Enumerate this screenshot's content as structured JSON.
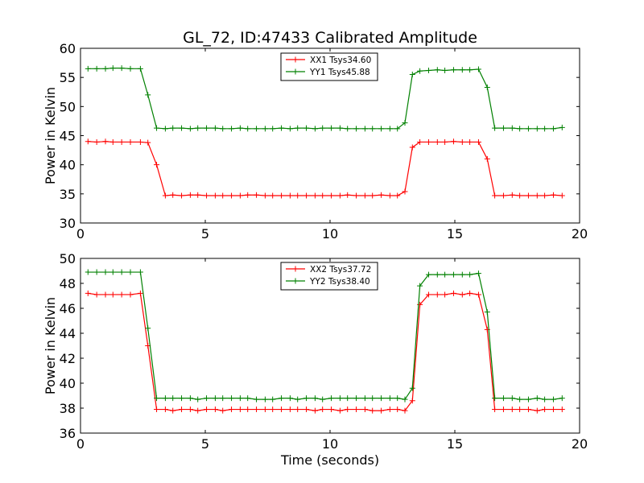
{
  "title": "GL_72, ID:47433 Calibrated Amplitude",
  "chart_data": [
    {
      "type": "line",
      "ylabel": "Power in Kelvin",
      "xlabel": "",
      "xlim": [
        0,
        20
      ],
      "ylim": [
        30,
        60
      ],
      "xticks": [
        "0",
        "5",
        "10",
        "15",
        "20"
      ],
      "yticks": [
        "30",
        "35",
        "40",
        "45",
        "50",
        "55",
        "60"
      ],
      "legend": "top-center",
      "grid": false,
      "series": [
        {
          "name": "XX1 Tsys34.60",
          "color": "#ff0000",
          "x": [
            0.3,
            0.65,
            1.0,
            1.3,
            1.65,
            2.0,
            2.4,
            2.7,
            3.05,
            3.4,
            3.7,
            4.05,
            4.4,
            4.7,
            5.05,
            5.4,
            5.7,
            6.05,
            6.4,
            6.7,
            7.05,
            7.4,
            7.7,
            8.05,
            8.4,
            8.7,
            9.05,
            9.4,
            9.7,
            10.05,
            10.4,
            10.7,
            11.05,
            11.4,
            11.7,
            12.05,
            12.4,
            12.7,
            13.0,
            13.3,
            13.6,
            13.95,
            14.3,
            14.6,
            14.95,
            15.3,
            15.6,
            15.95,
            16.3,
            16.6,
            16.95,
            17.3,
            17.6,
            17.95,
            18.3,
            18.6,
            18.95,
            19.3
          ],
          "y": [
            44.0,
            43.9,
            44.0,
            43.9,
            43.9,
            43.9,
            43.9,
            43.8,
            40.0,
            34.7,
            34.8,
            34.7,
            34.8,
            34.8,
            34.7,
            34.7,
            34.7,
            34.7,
            34.7,
            34.8,
            34.8,
            34.7,
            34.7,
            34.7,
            34.7,
            34.7,
            34.7,
            34.7,
            34.7,
            34.7,
            34.7,
            34.8,
            34.7,
            34.7,
            34.7,
            34.8,
            34.7,
            34.7,
            35.4,
            43.0,
            43.9,
            43.9,
            43.9,
            43.9,
            44.0,
            43.9,
            43.9,
            43.9,
            41.0,
            34.7,
            34.7,
            34.8,
            34.7,
            34.7,
            34.7,
            34.7,
            34.8,
            34.7
          ]
        },
        {
          "name": "YY1 Tsys45.88",
          "color": "#008000",
          "x": [
            0.3,
            0.65,
            1.0,
            1.3,
            1.65,
            2.0,
            2.4,
            2.7,
            3.05,
            3.4,
            3.7,
            4.05,
            4.4,
            4.7,
            5.05,
            5.4,
            5.7,
            6.05,
            6.4,
            6.7,
            7.05,
            7.4,
            7.7,
            8.05,
            8.4,
            8.7,
            9.05,
            9.4,
            9.7,
            10.05,
            10.4,
            10.7,
            11.05,
            11.4,
            11.7,
            12.05,
            12.4,
            12.7,
            13.0,
            13.3,
            13.6,
            13.95,
            14.3,
            14.6,
            14.95,
            15.3,
            15.6,
            15.95,
            16.3,
            16.6,
            16.95,
            17.3,
            17.6,
            17.95,
            18.3,
            18.6,
            18.95,
            19.3
          ],
          "y": [
            56.5,
            56.5,
            56.5,
            56.6,
            56.6,
            56.5,
            56.5,
            52.0,
            46.3,
            46.2,
            46.3,
            46.3,
            46.2,
            46.3,
            46.3,
            46.3,
            46.2,
            46.2,
            46.3,
            46.2,
            46.2,
            46.2,
            46.2,
            46.3,
            46.2,
            46.3,
            46.3,
            46.2,
            46.3,
            46.3,
            46.3,
            46.2,
            46.2,
            46.2,
            46.2,
            46.2,
            46.2,
            46.2,
            47.2,
            55.5,
            56.1,
            56.2,
            56.3,
            56.2,
            56.3,
            56.3,
            56.3,
            56.4,
            53.3,
            46.3,
            46.3,
            46.3,
            46.2,
            46.2,
            46.2,
            46.2,
            46.2,
            46.4
          ]
        }
      ]
    },
    {
      "type": "line",
      "ylabel": "Power in Kelvin",
      "xlabel": "Time (seconds)",
      "xlim": [
        0,
        20
      ],
      "ylim": [
        36,
        50
      ],
      "xticks": [
        "0",
        "5",
        "10",
        "15",
        "20"
      ],
      "yticks": [
        "36",
        "38",
        "40",
        "42",
        "44",
        "46",
        "48",
        "50"
      ],
      "legend": "top-center",
      "grid": false,
      "series": [
        {
          "name": "XX2 Tsys37.72",
          "color": "#ff0000",
          "x": [
            0.3,
            0.65,
            1.0,
            1.3,
            1.65,
            2.0,
            2.4,
            2.7,
            3.05,
            3.4,
            3.7,
            4.05,
            4.4,
            4.7,
            5.05,
            5.4,
            5.7,
            6.05,
            6.4,
            6.7,
            7.05,
            7.4,
            7.7,
            8.05,
            8.4,
            8.7,
            9.05,
            9.4,
            9.7,
            10.05,
            10.4,
            10.7,
            11.05,
            11.4,
            11.7,
            12.05,
            12.4,
            12.7,
            13.0,
            13.3,
            13.6,
            13.95,
            14.3,
            14.6,
            14.95,
            15.3,
            15.6,
            15.95,
            16.3,
            16.6,
            16.95,
            17.3,
            17.6,
            17.95,
            18.3,
            18.6,
            18.95,
            19.3
          ],
          "y": [
            47.2,
            47.1,
            47.1,
            47.1,
            47.1,
            47.1,
            47.2,
            43.0,
            37.9,
            37.9,
            37.8,
            37.9,
            37.9,
            37.8,
            37.9,
            37.9,
            37.8,
            37.9,
            37.9,
            37.9,
            37.9,
            37.9,
            37.9,
            37.9,
            37.9,
            37.9,
            37.9,
            37.8,
            37.9,
            37.9,
            37.8,
            37.9,
            37.9,
            37.9,
            37.8,
            37.8,
            37.9,
            37.9,
            37.8,
            38.6,
            46.3,
            47.1,
            47.1,
            47.1,
            47.2,
            47.1,
            47.2,
            47.1,
            44.3,
            37.9,
            37.9,
            37.9,
            37.9,
            37.9,
            37.8,
            37.9,
            37.9,
            37.9
          ]
        },
        {
          "name": "YY2 Tsys38.40",
          "color": "#008000",
          "x": [
            0.3,
            0.65,
            1.0,
            1.3,
            1.65,
            2.0,
            2.4,
            2.7,
            3.05,
            3.4,
            3.7,
            4.05,
            4.4,
            4.7,
            5.05,
            5.4,
            5.7,
            6.05,
            6.4,
            6.7,
            7.05,
            7.4,
            7.7,
            8.05,
            8.4,
            8.7,
            9.05,
            9.4,
            9.7,
            10.05,
            10.4,
            10.7,
            11.05,
            11.4,
            11.7,
            12.05,
            12.4,
            12.7,
            13.0,
            13.3,
            13.6,
            13.95,
            14.3,
            14.6,
            14.95,
            15.3,
            15.6,
            15.95,
            16.3,
            16.6,
            16.95,
            17.3,
            17.6,
            17.95,
            18.3,
            18.6,
            18.95,
            19.3
          ],
          "y": [
            48.9,
            48.9,
            48.9,
            48.9,
            48.9,
            48.9,
            48.9,
            44.4,
            38.8,
            38.8,
            38.8,
            38.8,
            38.8,
            38.7,
            38.8,
            38.8,
            38.8,
            38.8,
            38.8,
            38.8,
            38.7,
            38.7,
            38.7,
            38.8,
            38.8,
            38.7,
            38.8,
            38.8,
            38.7,
            38.8,
            38.8,
            38.8,
            38.8,
            38.8,
            38.8,
            38.8,
            38.8,
            38.8,
            38.7,
            39.6,
            47.8,
            48.7,
            48.7,
            48.7,
            48.7,
            48.7,
            48.7,
            48.8,
            45.7,
            38.8,
            38.8,
            38.8,
            38.7,
            38.7,
            38.8,
            38.7,
            38.7,
            38.8
          ]
        }
      ]
    }
  ]
}
